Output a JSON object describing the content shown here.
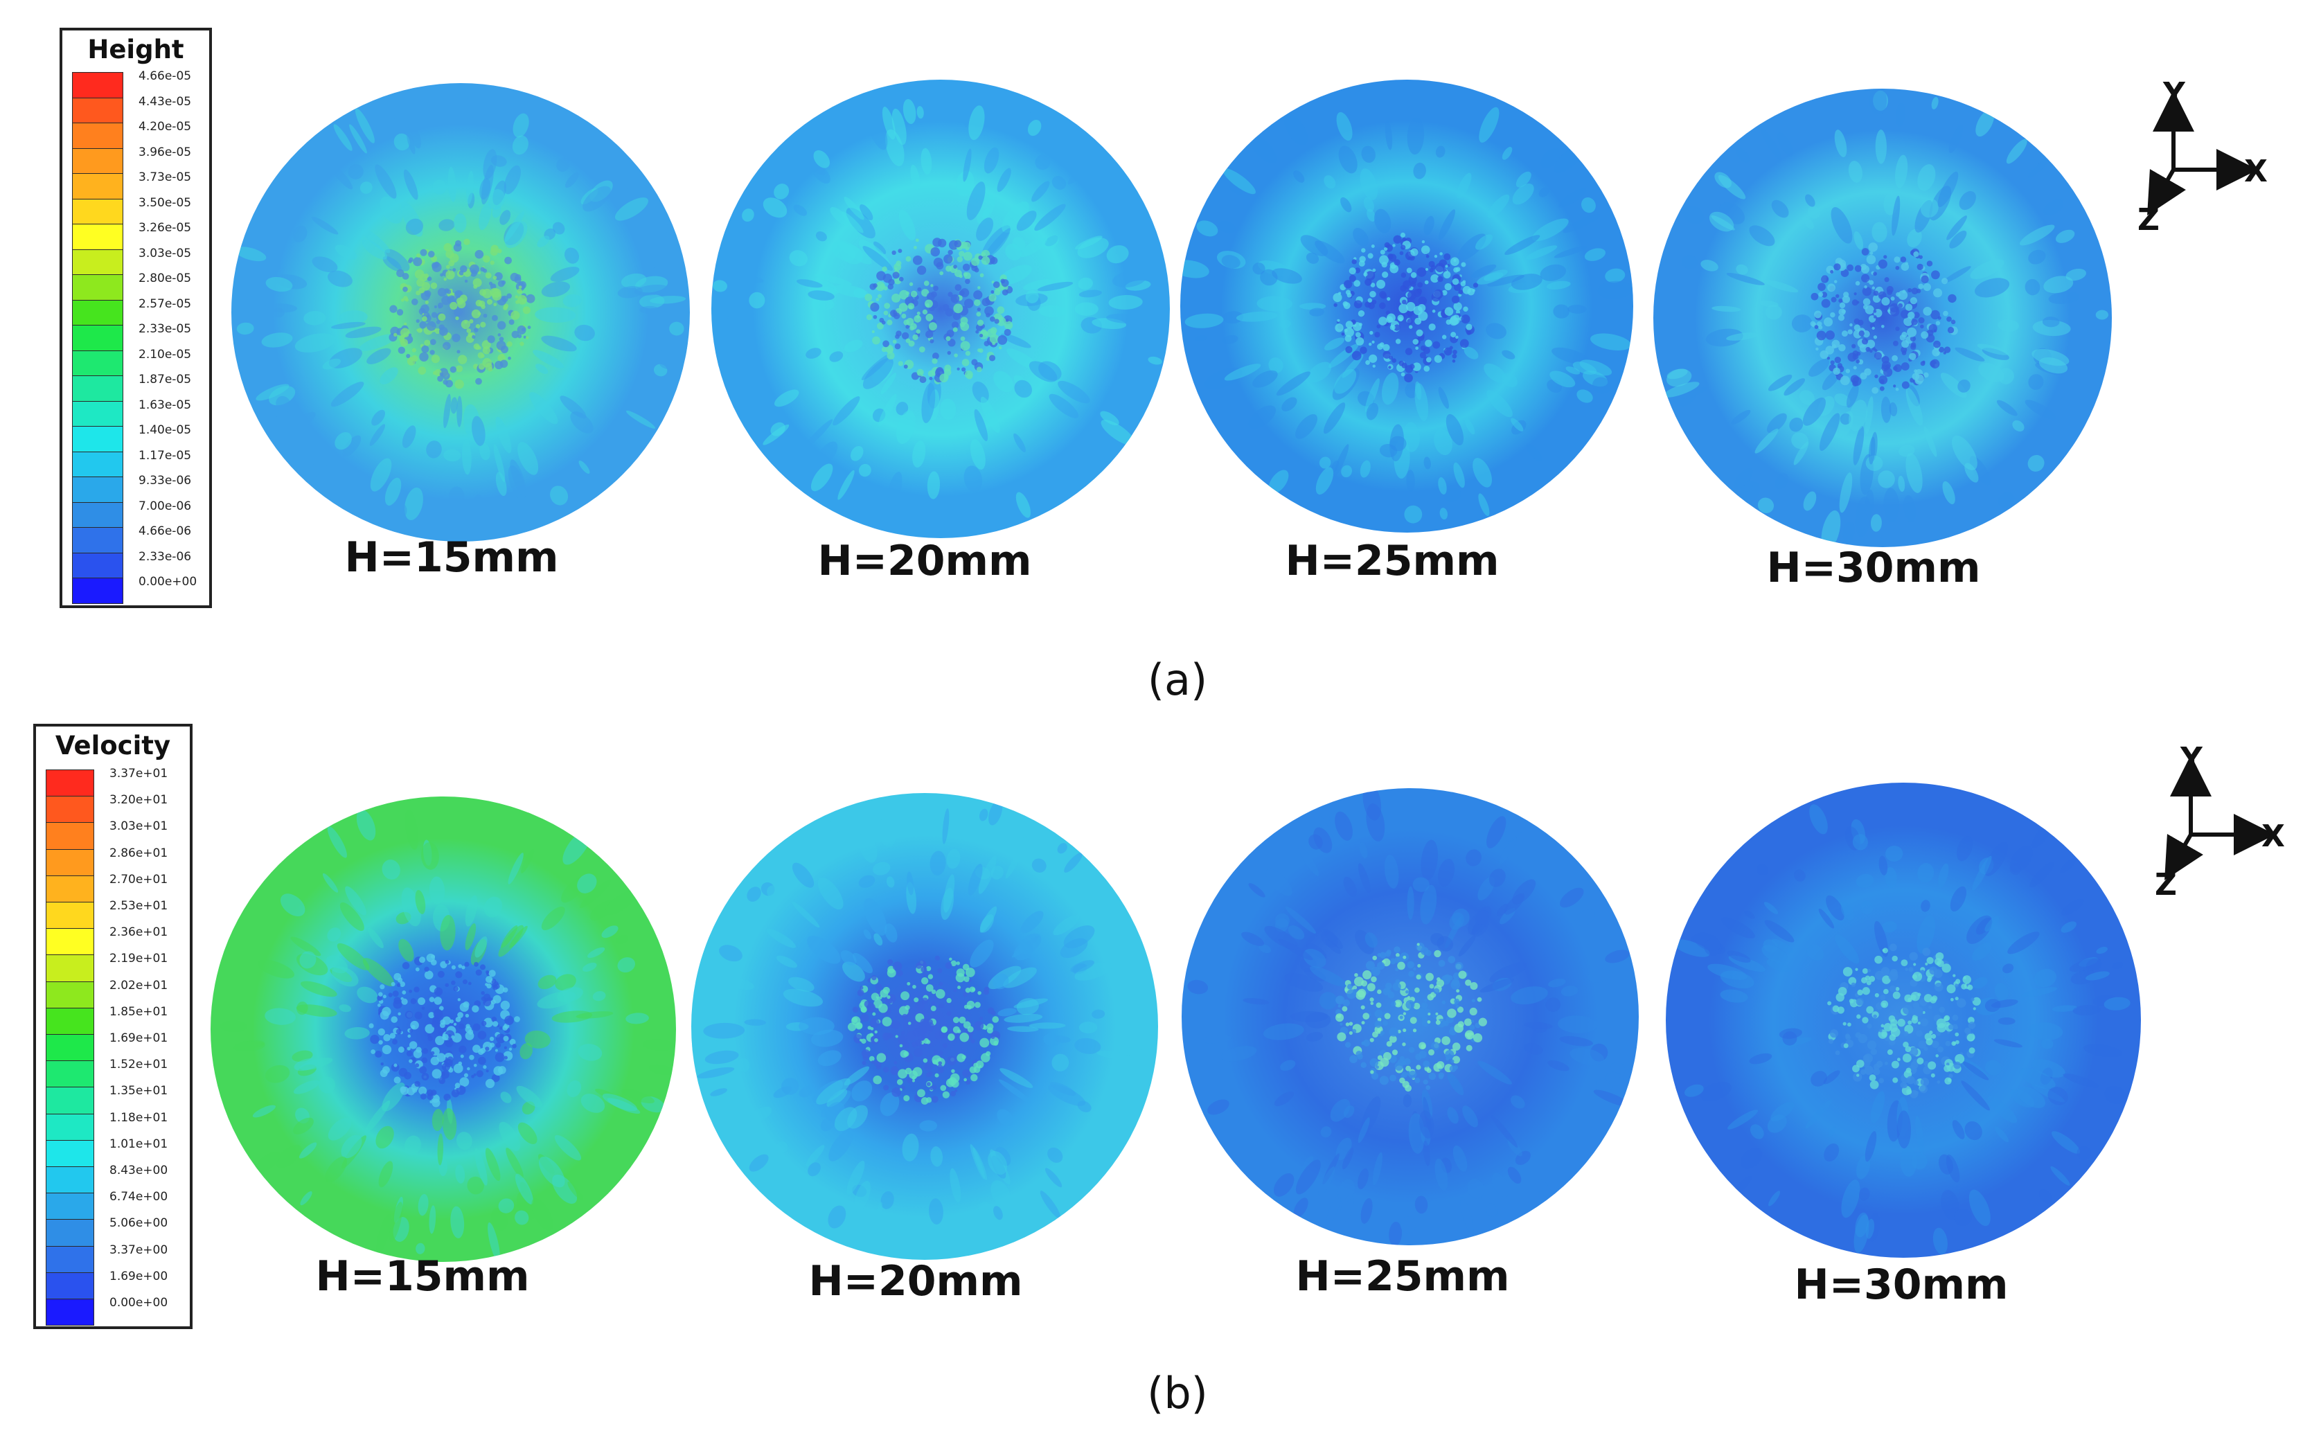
{
  "colorScale": [
    "#1a1aff",
    "#2a52ee",
    "#2f72ea",
    "#2f8ee6",
    "#2aa8ea",
    "#22c8ee",
    "#1ee6ea",
    "#1ee8c4",
    "#1ee8a0",
    "#1ee870",
    "#1ee84a",
    "#46e41e",
    "#8ee81e",
    "#c8ee1e",
    "#ffff22",
    "#ffd81e",
    "#ffb21e",
    "#ff9a1e",
    "#ff801e",
    "#ff581e",
    "#ff2a1e"
  ],
  "panels": [
    {
      "id": "a",
      "label": "(a)",
      "legend": {
        "title": "Height",
        "ticks": [
          "4.66e-05",
          "4.43e-05",
          "4.20e-05",
          "3.96e-05",
          "3.73e-05",
          "3.50e-05",
          "3.26e-05",
          "3.03e-05",
          "2.80e-05",
          "2.57e-05",
          "2.33e-05",
          "2.10e-05",
          "1.87e-05",
          "1.63e-05",
          "1.40e-05",
          "1.17e-05",
          "9.33e-06",
          "7.00e-06",
          "4.66e-06",
          "2.33e-06",
          "0.00e+00"
        ]
      },
      "cases": [
        {
          "label": "H=15mm",
          "colors": {
            "outer": "#3aa0ea",
            "mid": "#3fd2e2",
            "inner": "#5ee09a",
            "core": "#4c8ed8",
            "speck": "#7ae07a"
          }
        },
        {
          "label": "H=20mm",
          "colors": {
            "outer": "#34a2ec",
            "mid": "#44dce8",
            "inner": "#46c8ea",
            "core": "#3d6fe0",
            "speck": "#60e0b8"
          }
        },
        {
          "label": "H=25mm",
          "colors": {
            "outer": "#2e8ee8",
            "mid": "#3cc8ea",
            "inner": "#3184e6",
            "core": "#2f55dc",
            "speck": "#55d4ea"
          }
        },
        {
          "label": "H=30mm",
          "colors": {
            "outer": "#3290e8",
            "mid": "#48cfe8",
            "inner": "#3aa8ea",
            "core": "#345fdc",
            "speck": "#55c8ea"
          }
        }
      ],
      "axes": {
        "x": "X",
        "y": "Y",
        "z": "Z"
      }
    },
    {
      "id": "b",
      "label": "(b)",
      "legend": {
        "title": "Velocity",
        "ticks": [
          "3.37e+01",
          "3.20e+01",
          "3.03e+01",
          "2.86e+01",
          "2.70e+01",
          "2.53e+01",
          "2.36e+01",
          "2.19e+01",
          "2.02e+01",
          "1.85e+01",
          "1.69e+01",
          "1.52e+01",
          "1.35e+01",
          "1.18e+01",
          "1.01e+01",
          "8.43e+00",
          "6.74e+00",
          "5.06e+00",
          "3.37e+00",
          "1.69e+00",
          "0.00e+00"
        ]
      },
      "cases": [
        {
          "label": "H=15mm",
          "colors": {
            "outer": "#46d85a",
            "mid": "#3cd8c8",
            "inner": "#2f7ee6",
            "core": "#2f60e0",
            "speck": "#52c8ea"
          }
        },
        {
          "label": "H=20mm",
          "colors": {
            "outer": "#3cc8e8",
            "mid": "#34a6ec",
            "inner": "#3070e0",
            "core": "#3a66e0",
            "speck": "#5ce0c0"
          }
        },
        {
          "label": "H=25mm",
          "colors": {
            "outer": "#2f86e6",
            "mid": "#2f6ee2",
            "inner": "#3a7ee4",
            "core": "#3a8ee6",
            "speck": "#78e6c0"
          }
        },
        {
          "label": "H=30mm",
          "colors": {
            "outer": "#2e6ee2",
            "mid": "#3090e8",
            "inner": "#3282e6",
            "core": "#3c8ee6",
            "speck": "#62d8d8"
          }
        }
      ],
      "axes": {
        "x": "X",
        "y": "Y",
        "z": "Z"
      }
    }
  ]
}
